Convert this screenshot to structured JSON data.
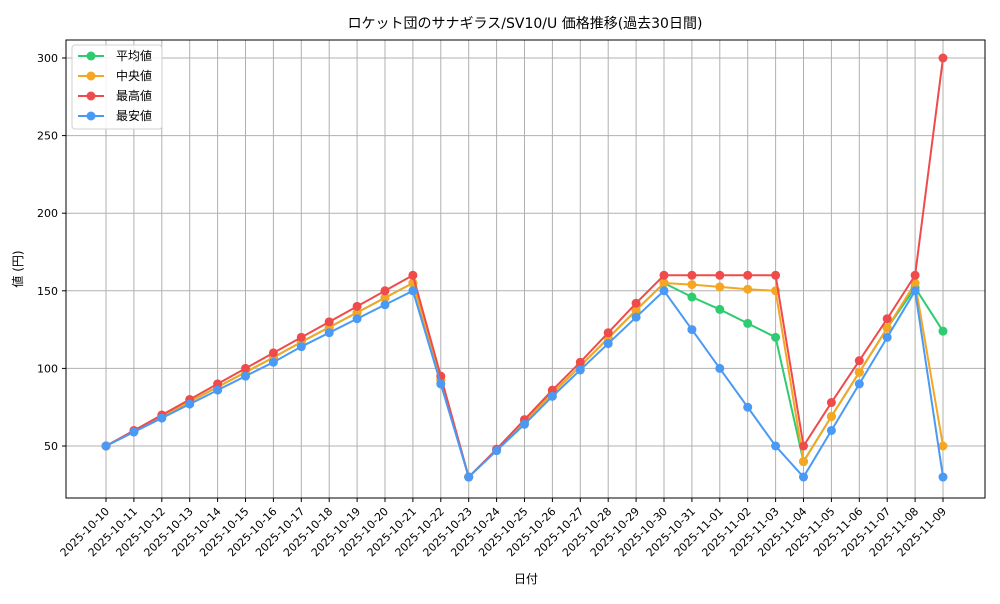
{
  "chart_data": {
    "type": "line",
    "title": "ロケット団のサナギラス/SV10/U 価格推移(過去30日間)",
    "xlabel": "日付",
    "ylabel": "値 (円)",
    "ylim": [
      17,
      313
    ],
    "yticks": [
      50,
      100,
      150,
      200,
      250,
      300
    ],
    "grid": true,
    "legend_position": "upper left",
    "x": [
      "2025-10-10",
      "2025-10-11",
      "2025-10-12",
      "2025-10-13",
      "2025-10-14",
      "2025-10-15",
      "2025-10-16",
      "2025-10-17",
      "2025-10-18",
      "2025-10-19",
      "2025-10-20",
      "2025-10-21",
      "2025-10-22",
      "2025-10-23",
      "2025-10-24",
      "2025-10-25",
      "2025-10-26",
      "2025-10-27",
      "2025-10-28",
      "2025-10-29",
      "2025-10-30",
      "2025-10-31",
      "2025-11-01",
      "2025-11-02",
      "2025-11-03",
      "2025-11-04",
      "2025-11-05",
      "2025-11-06",
      "2025-11-07",
      "2025-11-08",
      "2025-11-09"
    ],
    "series": [
      {
        "name": "平均値",
        "color": "#2ecc71",
        "values": [
          50,
          59.5,
          69,
          78.5,
          88,
          97.5,
          107,
          117,
          126.5,
          136,
          145.5,
          155,
          92.5,
          30,
          47.5,
          65.5,
          84,
          101.5,
          119.5,
          137.5,
          155,
          146,
          138,
          129,
          120,
          40,
          69,
          97.5,
          126,
          152,
          124
        ]
      },
      {
        "name": "中央値",
        "color": "#f5a623",
        "values": [
          50,
          59.5,
          69,
          78.5,
          88,
          97.5,
          107,
          117,
          126.5,
          136,
          145.5,
          155,
          92.5,
          30,
          47.5,
          65.5,
          84,
          101.5,
          119.5,
          137.5,
          155,
          154,
          152.5,
          151,
          150,
          40,
          69,
          97.5,
          126,
          155,
          50
        ]
      },
      {
        "name": "最高値",
        "color": "#ef4b4b",
        "values": [
          50,
          60,
          70,
          80,
          90,
          100,
          110,
          120,
          130,
          140,
          150,
          160,
          95,
          30,
          48,
          67,
          86,
          104,
          123,
          142,
          160,
          160,
          160,
          160,
          160,
          50,
          78,
          105,
          132,
          160,
          300
        ]
      },
      {
        "name": "最安値",
        "color": "#4a9af5",
        "values": [
          50,
          59,
          68,
          77,
          86,
          95,
          104,
          114,
          123,
          132,
          141,
          150,
          90,
          30,
          47,
          64,
          82,
          99,
          116,
          133,
          150,
          125,
          100,
          75,
          50,
          30,
          60,
          90,
          120,
          150,
          30
        ]
      }
    ]
  }
}
